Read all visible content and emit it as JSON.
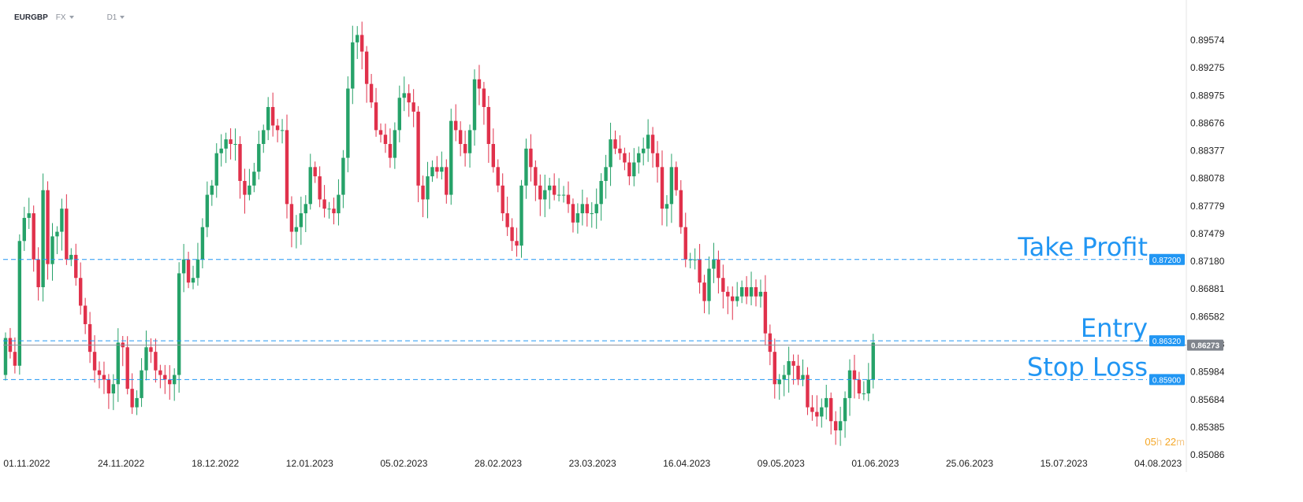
{
  "toolbar": {
    "symbol": "EURGBP",
    "market": "FX",
    "timeframe": "D1"
  },
  "chart_data": {
    "type": "candlestick",
    "ylim": [
      0.8491,
      0.8976
    ],
    "y_ticks": [
      "0.89574",
      "0.89275",
      "0.88975",
      "0.88676",
      "0.88377",
      "0.88078",
      "0.87779",
      "0.87479",
      "0.87180",
      "0.86881",
      "0.86582",
      "0.86283",
      "0.85984",
      "0.85684",
      "0.85385",
      "0.85086"
    ],
    "x_ticks": [
      "01.11.2022",
      "24.11.2022",
      "18.12.2022",
      "12.01.2023",
      "05.02.2023",
      "28.02.2023",
      "23.03.2023",
      "16.04.2023",
      "09.05.2023",
      "01.06.2023",
      "25.06.2023",
      "15.07.2023",
      "04.08.2023"
    ],
    "closes": [
      0.8635,
      0.862,
      0.8605,
      0.874,
      0.8765,
      0.877,
      0.872,
      0.869,
      0.8795,
      0.8715,
      0.8745,
      0.875,
      0.8775,
      0.872,
      0.8725,
      0.87,
      0.867,
      0.865,
      0.862,
      0.86,
      0.8595,
      0.859,
      0.8575,
      0.8585,
      0.863,
      0.8625,
      0.858,
      0.856,
      0.857,
      0.86,
      0.8625,
      0.862,
      0.86,
      0.8595,
      0.859,
      0.8585,
      0.8595,
      0.8705,
      0.872,
      0.8695,
      0.87,
      0.872,
      0.8755,
      0.879,
      0.88,
      0.8835,
      0.884,
      0.885,
      0.8845,
      0.8845,
      0.8805,
      0.879,
      0.88,
      0.8815,
      0.8845,
      0.886,
      0.8885,
      0.8865,
      0.886,
      0.886,
      0.878,
      0.875,
      0.8755,
      0.877,
      0.878,
      0.882,
      0.881,
      0.8785,
      0.8775,
      0.8775,
      0.877,
      0.879,
      0.883,
      0.8905,
      0.8955,
      0.8963,
      0.8945,
      0.891,
      0.889,
      0.886,
      0.8855,
      0.8845,
      0.883,
      0.886,
      0.8895,
      0.89,
      0.889,
      0.888,
      0.88,
      0.8785,
      0.881,
      0.882,
      0.8815,
      0.882,
      0.879,
      0.887,
      0.886,
      0.8845,
      0.8835,
      0.886,
      0.8915,
      0.8905,
      0.8885,
      0.8845,
      0.882,
      0.88,
      0.877,
      0.8755,
      0.874,
      0.8735,
      0.88,
      0.884,
      0.882,
      0.88,
      0.8785,
      0.8795,
      0.88,
      0.879,
      0.879,
      0.879,
      0.878,
      0.876,
      0.877,
      0.878,
      0.877,
      0.877,
      0.878,
      0.8805,
      0.882,
      0.885,
      0.884,
      0.8835,
      0.8825,
      0.881,
      0.8825,
      0.8835,
      0.884,
      0.8855,
      0.8835,
      0.882,
      0.8775,
      0.878,
      0.882,
      0.8795,
      0.8755,
      0.872,
      0.872,
      0.872,
      0.8695,
      0.8675,
      0.871,
      0.872,
      0.87,
      0.8685,
      0.868,
      0.8675,
      0.868,
      0.869,
      0.868,
      0.869,
      0.868,
      0.8685,
      0.864,
      0.862,
      0.8585,
      0.859,
      0.8595,
      0.861,
      0.8605,
      0.859,
      0.8595,
      0.856,
      0.8555,
      0.855,
      0.856,
      0.857,
      0.8545,
      0.8535,
      0.8545,
      0.857,
      0.86,
      0.859,
      0.8575,
      0.8575,
      0.859,
      0.863
    ],
    "last_price": "0.86273",
    "levels": [
      {
        "name": "Take Profit",
        "value": 0.872,
        "label": "0.87200",
        "color": "#2196f3"
      },
      {
        "name": "Entry",
        "value": 0.8632,
        "label": "0.86320",
        "color": "#2196f3"
      },
      {
        "name": "Stop Loss",
        "value": 0.859,
        "label": "0.85900",
        "color": "#2196f3"
      }
    ],
    "up_color": "#26a269",
    "down_color": "#e0314b",
    "grid": false
  },
  "timer": {
    "h": "05",
    "h_unit": "h",
    "m": "22",
    "m_unit": "m"
  }
}
